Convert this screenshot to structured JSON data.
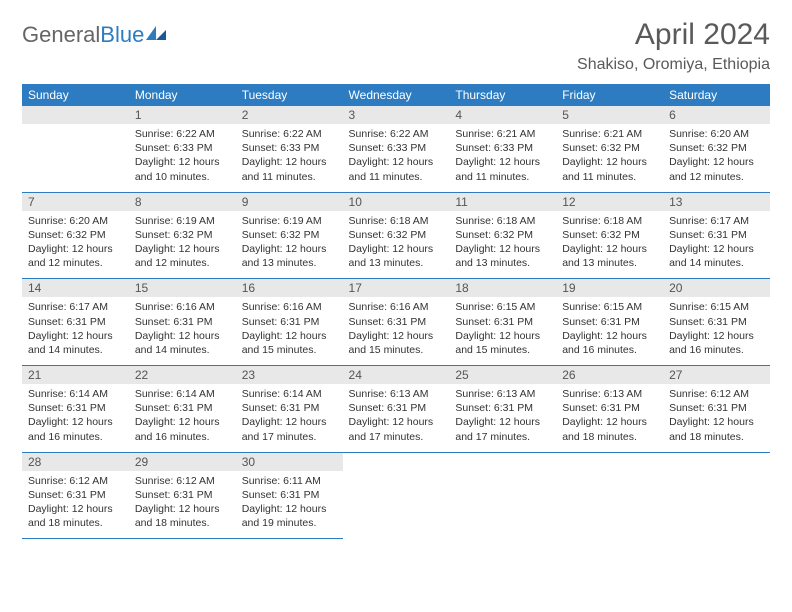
{
  "logo": {
    "text1": "General",
    "text2": "Blue"
  },
  "title": "April 2024",
  "location": "Shakiso, Oromiya, Ethiopia",
  "colors": {
    "header_bg": "#2d7cc1",
    "header_fg": "#ffffff",
    "daynum_bg": "#e8e8e8",
    "text": "#333333",
    "title_color": "#5a5a5a"
  },
  "weekdays": [
    "Sunday",
    "Monday",
    "Tuesday",
    "Wednesday",
    "Thursday",
    "Friday",
    "Saturday"
  ],
  "weeks": [
    [
      null,
      {
        "n": "1",
        "sr": "6:22 AM",
        "ss": "6:33 PM",
        "dl": "12 hours and 10 minutes."
      },
      {
        "n": "2",
        "sr": "6:22 AM",
        "ss": "6:33 PM",
        "dl": "12 hours and 11 minutes."
      },
      {
        "n": "3",
        "sr": "6:22 AM",
        "ss": "6:33 PM",
        "dl": "12 hours and 11 minutes."
      },
      {
        "n": "4",
        "sr": "6:21 AM",
        "ss": "6:33 PM",
        "dl": "12 hours and 11 minutes."
      },
      {
        "n": "5",
        "sr": "6:21 AM",
        "ss": "6:32 PM",
        "dl": "12 hours and 11 minutes."
      },
      {
        "n": "6",
        "sr": "6:20 AM",
        "ss": "6:32 PM",
        "dl": "12 hours and 12 minutes."
      }
    ],
    [
      {
        "n": "7",
        "sr": "6:20 AM",
        "ss": "6:32 PM",
        "dl": "12 hours and 12 minutes."
      },
      {
        "n": "8",
        "sr": "6:19 AM",
        "ss": "6:32 PM",
        "dl": "12 hours and 12 minutes."
      },
      {
        "n": "9",
        "sr": "6:19 AM",
        "ss": "6:32 PM",
        "dl": "12 hours and 13 minutes."
      },
      {
        "n": "10",
        "sr": "6:18 AM",
        "ss": "6:32 PM",
        "dl": "12 hours and 13 minutes."
      },
      {
        "n": "11",
        "sr": "6:18 AM",
        "ss": "6:32 PM",
        "dl": "12 hours and 13 minutes."
      },
      {
        "n": "12",
        "sr": "6:18 AM",
        "ss": "6:32 PM",
        "dl": "12 hours and 13 minutes."
      },
      {
        "n": "13",
        "sr": "6:17 AM",
        "ss": "6:31 PM",
        "dl": "12 hours and 14 minutes."
      }
    ],
    [
      {
        "n": "14",
        "sr": "6:17 AM",
        "ss": "6:31 PM",
        "dl": "12 hours and 14 minutes."
      },
      {
        "n": "15",
        "sr": "6:16 AM",
        "ss": "6:31 PM",
        "dl": "12 hours and 14 minutes."
      },
      {
        "n": "16",
        "sr": "6:16 AM",
        "ss": "6:31 PM",
        "dl": "12 hours and 15 minutes."
      },
      {
        "n": "17",
        "sr": "6:16 AM",
        "ss": "6:31 PM",
        "dl": "12 hours and 15 minutes."
      },
      {
        "n": "18",
        "sr": "6:15 AM",
        "ss": "6:31 PM",
        "dl": "12 hours and 15 minutes."
      },
      {
        "n": "19",
        "sr": "6:15 AM",
        "ss": "6:31 PM",
        "dl": "12 hours and 16 minutes."
      },
      {
        "n": "20",
        "sr": "6:15 AM",
        "ss": "6:31 PM",
        "dl": "12 hours and 16 minutes."
      }
    ],
    [
      {
        "n": "21",
        "sr": "6:14 AM",
        "ss": "6:31 PM",
        "dl": "12 hours and 16 minutes."
      },
      {
        "n": "22",
        "sr": "6:14 AM",
        "ss": "6:31 PM",
        "dl": "12 hours and 16 minutes."
      },
      {
        "n": "23",
        "sr": "6:14 AM",
        "ss": "6:31 PM",
        "dl": "12 hours and 17 minutes."
      },
      {
        "n": "24",
        "sr": "6:13 AM",
        "ss": "6:31 PM",
        "dl": "12 hours and 17 minutes."
      },
      {
        "n": "25",
        "sr": "6:13 AM",
        "ss": "6:31 PM",
        "dl": "12 hours and 17 minutes."
      },
      {
        "n": "26",
        "sr": "6:13 AM",
        "ss": "6:31 PM",
        "dl": "12 hours and 18 minutes."
      },
      {
        "n": "27",
        "sr": "6:12 AM",
        "ss": "6:31 PM",
        "dl": "12 hours and 18 minutes."
      }
    ],
    [
      {
        "n": "28",
        "sr": "6:12 AM",
        "ss": "6:31 PM",
        "dl": "12 hours and 18 minutes."
      },
      {
        "n": "29",
        "sr": "6:12 AM",
        "ss": "6:31 PM",
        "dl": "12 hours and 18 minutes."
      },
      {
        "n": "30",
        "sr": "6:11 AM",
        "ss": "6:31 PM",
        "dl": "12 hours and 19 minutes."
      },
      null,
      null,
      null,
      null
    ]
  ],
  "labels": {
    "sunrise": "Sunrise:",
    "sunset": "Sunset:",
    "daylight": "Daylight:"
  }
}
